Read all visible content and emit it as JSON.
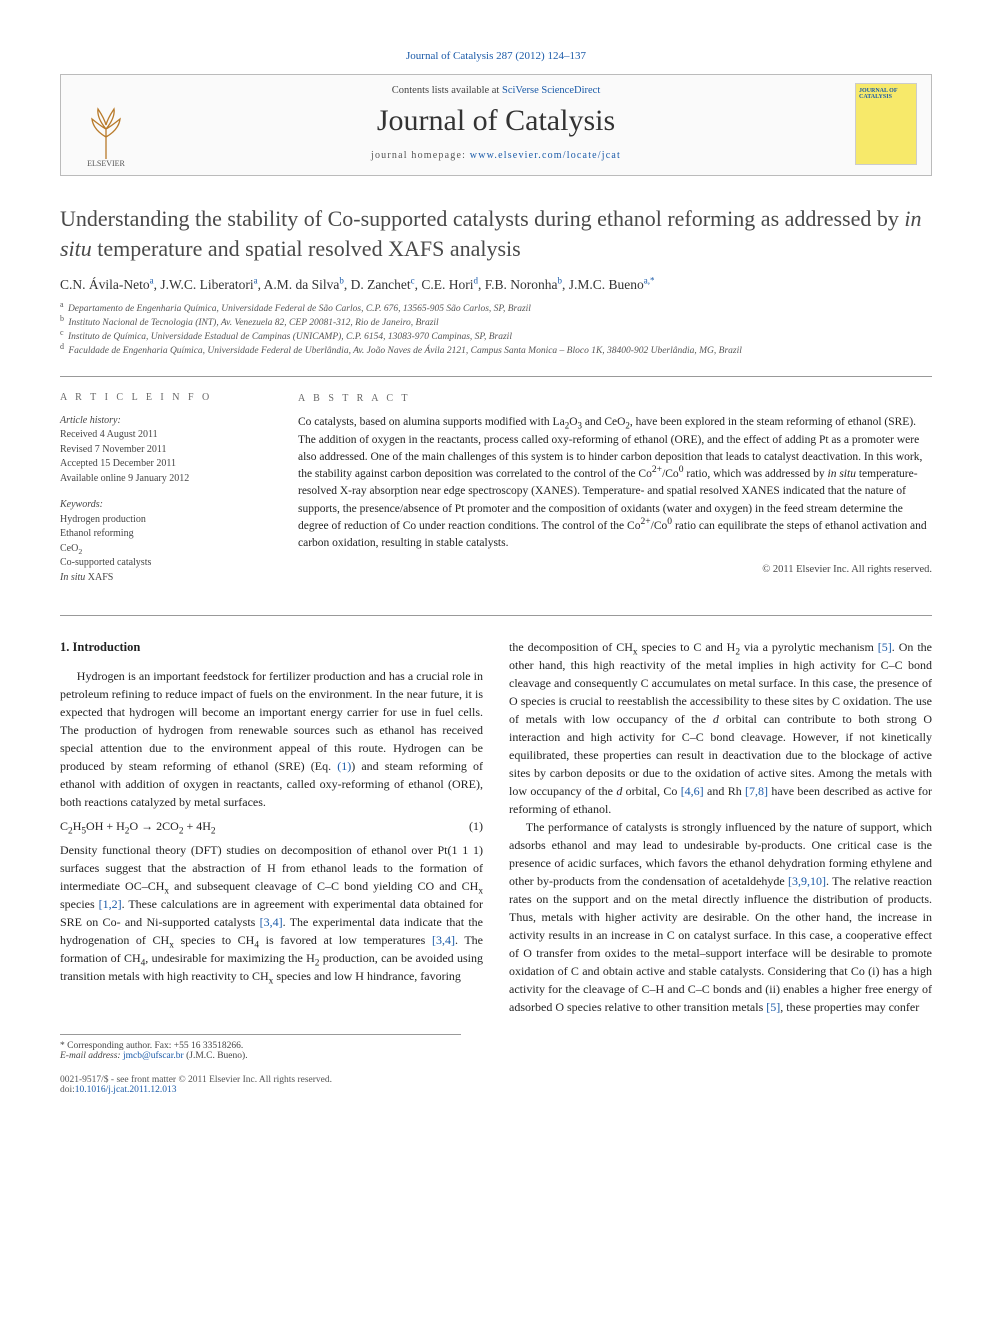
{
  "header": {
    "journal_ref": "Journal of Catalysis 287 (2012) 124–137",
    "contents_prefix": "Contents lists available at ",
    "contents_link": "SciVerse ScienceDirect",
    "journal_name": "Journal of Catalysis",
    "homepage_prefix": "journal homepage: ",
    "homepage_link": "www.elsevier.com/locate/jcat",
    "cover_text": "JOURNAL OF CATALYSIS",
    "elsevier_alt": "Elsevier tree logo"
  },
  "title_html": "Understanding the stability of Co-supported catalysts during ethanol reforming as addressed by <i>in situ</i> temperature and spatial resolved XAFS analysis",
  "authors_html": "C.N. Ávila-Neto<sup>a</sup>, J.W.C. Liberatori<sup>a</sup>, A.M. da Silva<sup>b</sup>, D. Zanchet<sup>c</sup>, C.E. Hori<sup>d</sup>, F.B. Noronha<sup>b</sup>, J.M.C. Bueno<sup>a,*</sup>",
  "affiliations": [
    {
      "sup": "a",
      "text": "Departamento de Engenharia Química, Universidade Federal de São Carlos, C.P. 676, 13565-905 São Carlos, SP, Brazil"
    },
    {
      "sup": "b",
      "text": "Instituto Nacional de Tecnologia (INT), Av. Venezuela 82, CEP 20081-312, Rio de Janeiro, Brazil"
    },
    {
      "sup": "c",
      "text": "Instituto de Química, Universidade Estadual de Campinas (UNICAMP), C.P. 6154, 13083-970 Campinas, SP, Brazil"
    },
    {
      "sup": "d",
      "text": "Faculdade de Engenharia Química, Universidade Federal de Uberlândia, Av. João Naves de Ávila 2121, Campus Santa Monica – Bloco 1K, 38400-902 Uberlândia, MG, Brazil"
    }
  ],
  "info": {
    "heading": "A R T I C L E   I N F O",
    "history_label": "Article history:",
    "history": [
      "Received 4 August 2011",
      "Revised 7 November 2011",
      "Accepted 15 December 2011",
      "Available online 9 January 2012"
    ],
    "keywords_label": "Keywords:",
    "keywords_html": [
      "Hydrogen production",
      "Ethanol reforming",
      "CeO<sub>2</sub>",
      "Co-supported catalysts",
      "<i>In situ</i> XAFS"
    ]
  },
  "abstract": {
    "heading": "A B S T R A C T",
    "text_html": "Co catalysts, based on alumina supports modified with La<sub>2</sub>O<sub>3</sub> and CeO<sub>2</sub>, have been explored in the steam reforming of ethanol (SRE). The addition of oxygen in the reactants, process called oxy-reforming of ethanol (ORE), and the effect of adding Pt as a promoter were also addressed. One of the main challenges of this system is to hinder carbon deposition that leads to catalyst deactivation. In this work, the stability against carbon deposition was correlated to the control of the Co<sup>2+</sup>/Co<sup>0</sup> ratio, which was addressed by <i>in situ</i> temperature-resolved X-ray absorption near edge spectroscopy (XANES). Temperature- and spatial resolved XANES indicated that the nature of supports, the presence/absence of Pt promoter and the composition of oxidants (water and oxygen) in the feed stream determine the degree of reduction of Co under reaction conditions. The control of the Co<sup>2+</sup>/Co<sup>0</sup> ratio can equilibrate the steps of ethanol activation and carbon oxidation, resulting in stable catalysts.",
    "copyright": "© 2011 Elsevier Inc. All rights reserved."
  },
  "body": {
    "section_heading": "1. Introduction",
    "col1_paras_html": [
      "Hydrogen is an important feedstock for fertilizer production and has a crucial role in petroleum refining to reduce impact of fuels on the environment. In the near future, it is expected that hydrogen will become an important energy carrier for use in fuel cells. The production of hydrogen from renewable sources such as ethanol has received special attention due to the environment appeal of this route. Hydrogen can be produced by steam reforming of ethanol (SRE) (Eq. <span class='ref-link'>(1)</span>) and steam reforming of ethanol with addition of oxygen in reactants, called oxy-reforming of ethanol (ORE), both reactions catalyzed by metal surfaces."
    ],
    "equation_html": "C<sub>2</sub>H<sub>5</sub>OH + H<sub>2</sub>O → 2CO<sub>2</sub> + 4H<sub>2</sub>",
    "equation_num": "(1)",
    "col1_after_eq_html": "Density functional theory (DFT) studies on decomposition of ethanol over Pt(1 1 1) surfaces suggest that the abstraction of H from ethanol leads to the formation of intermediate OC–CH<sub>x</sub> and subsequent cleavage of C–C bond yielding CO and CH<sub>x</sub> species <span class='ref-link'>[1,2]</span>. These calculations are in agreement with experimental data obtained for SRE on Co- and Ni-supported catalysts <span class='ref-link'>[3,4]</span>. The experimental data indicate that the hydrogenation of CH<sub>x</sub> species to CH<sub>4</sub> is favored at low temperatures <span class='ref-link'>[3,4]</span>. The formation of CH<sub>4</sub>, undesirable for maximizing the H<sub>2</sub> production, can be avoided using transition metals with high reactivity to CH<sub>x</sub> species and low H hindrance, favoring",
    "col2_paras_html": [
      "the decomposition of CH<sub>x</sub> species to C and H<sub>2</sub> via a pyrolytic mechanism <span class='ref-link'>[5]</span>. On the other hand, this high reactivity of the metal implies in high activity for C–C bond cleavage and consequently C accumulates on metal surface. In this case, the presence of O species is crucial to reestablish the accessibility to these sites by C oxidation. The use of metals with low occupancy of the <i>d</i> orbital can contribute to both strong O interaction and high activity for C–C bond cleavage. However, if not kinetically equilibrated, these properties can result in deactivation due to the blockage of active sites by carbon deposits or due to the oxidation of active sites. Among the metals with low occupancy of the <i>d</i> orbital, Co <span class='ref-link'>[4,6]</span> and Rh <span class='ref-link'>[7,8]</span> have been described as active for reforming of ethanol.",
      "The performance of catalysts is strongly influenced by the nature of support, which adsorbs ethanol and may lead to undesirable by-products. One critical case is the presence of acidic surfaces, which favors the ethanol dehydration forming ethylene and other by-products from the condensation of acetaldehyde <span class='ref-link'>[3,9,10]</span>. The relative reaction rates on the support and on the metal directly influence the distribution of products. Thus, metals with higher activity are desirable. On the other hand, the increase in activity results in an increase in C on catalyst surface. In this case, a cooperative effect of O transfer from oxides to the metal–support interface will be desirable to promote oxidation of C and obtain active and stable catalysts. Considering that Co (i) has a high activity for the cleavage of C–H and C–C bonds and (ii) enables a higher free energy of adsorbed O species relative to other transition metals <span class='ref-link'>[5]</span>, these properties may confer"
    ]
  },
  "footnotes": {
    "corr": "* Corresponding author. Fax: +55 16 33518266.",
    "email_label": "E-mail address:",
    "email": "jmcb@ufscar.br",
    "email_suffix": "(J.M.C. Bueno)."
  },
  "footer": {
    "left_line1": "0021-9517/$ - see front matter © 2011 Elsevier Inc. All rights reserved.",
    "doi_label": "doi:",
    "doi": "10.1016/j.jcat.2011.12.013"
  },
  "colors": {
    "link": "#1a5aa8",
    "cover_bg": "#f7e96a",
    "rule": "#999999"
  }
}
